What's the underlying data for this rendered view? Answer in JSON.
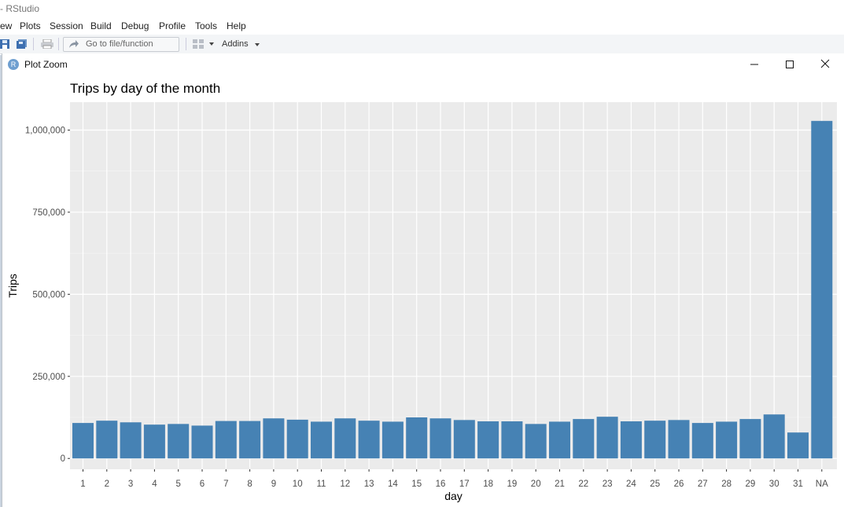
{
  "app": {
    "title": "- RStudio",
    "menu": [
      "ew",
      "Plots",
      "Session",
      "Build",
      "Debug",
      "Profile",
      "Tools",
      "Help"
    ],
    "toolbar": {
      "goto_placeholder": "Go to file/function",
      "addins_label": "Addins",
      "icons": [
        "save-icon",
        "save-all-icon",
        "print-icon",
        "go-to-arrow-icon",
        "grid-icon",
        "dropdown-caret-icon"
      ]
    }
  },
  "window": {
    "title": "Plot Zoom",
    "logo_letter": "R",
    "controls": [
      "minimize-icon",
      "maximize-icon",
      "close-icon"
    ]
  },
  "chart_data": {
    "type": "bar",
    "title": "Trips by day of the month",
    "xlabel": "day",
    "ylabel": "Trips",
    "categories": [
      "1",
      "2",
      "3",
      "4",
      "5",
      "6",
      "7",
      "8",
      "9",
      "10",
      "11",
      "12",
      "13",
      "14",
      "15",
      "16",
      "17",
      "18",
      "19",
      "20",
      "21",
      "22",
      "23",
      "24",
      "25",
      "26",
      "27",
      "28",
      "29",
      "30",
      "31",
      "NA"
    ],
    "values": [
      108000,
      115000,
      110000,
      103000,
      105000,
      100000,
      114000,
      114000,
      122000,
      118000,
      112000,
      122000,
      115000,
      112000,
      125000,
      122000,
      117000,
      113000,
      113000,
      105000,
      112000,
      120000,
      127000,
      113000,
      115000,
      117000,
      108000,
      112000,
      120000,
      134000,
      79000,
      1028000
    ],
    "ylim": [
      -33000,
      1085000
    ],
    "yticks": [
      0,
      250000,
      500000,
      750000,
      1000000
    ],
    "ytick_labels": [
      "0",
      "250,000",
      "500,000",
      "750,000",
      "1,000,000"
    ],
    "bar_color": "#4682B4",
    "panel_background": "#EBEBEB",
    "grid": true
  }
}
